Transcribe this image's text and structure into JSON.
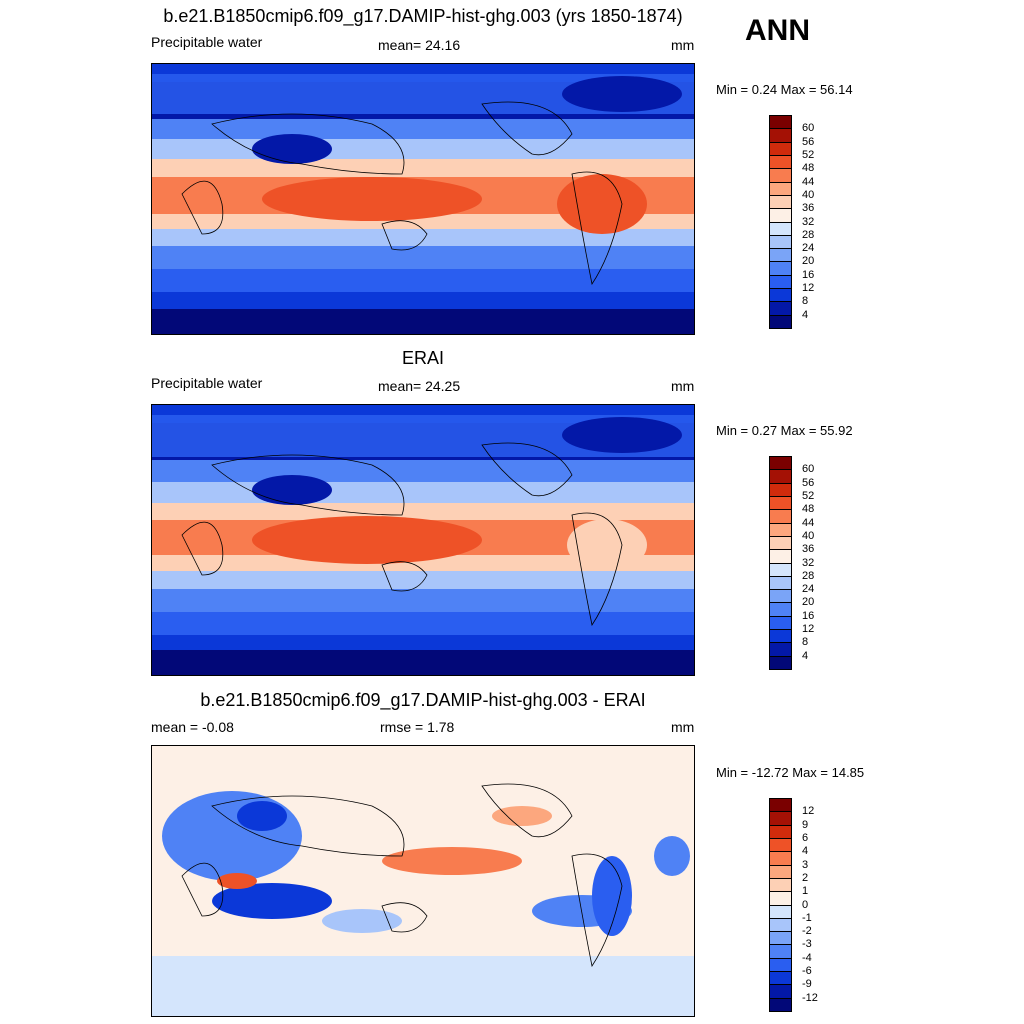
{
  "season": "ANN",
  "panels": [
    {
      "title": "b.e21.B1850cmip6.f09_g17.DAMIP-hist-ghg.003 (yrs 1850-1874)",
      "left_label": "Precipitable water",
      "center_label": "mean=  24.16",
      "units": "mm",
      "minmax": "Min =   0.24 Max =  56.14",
      "colorbar": {
        "labels": [
          "4",
          "8",
          "12",
          "16",
          "20",
          "24",
          "28",
          "32",
          "36",
          "40",
          "44",
          "48",
          "52",
          "56",
          "60"
        ],
        "colors": [
          "#020878",
          "#0318a8",
          "#0b38d8",
          "#2a5ef0",
          "#4f82f5",
          "#7aa4f7",
          "#a8c5fa",
          "#d4e5fc",
          "#fdf0e6",
          "#fdd0b5",
          "#fca77e",
          "#f87c4f",
          "#ee5227",
          "#d02b0c",
          "#a41105",
          "#7a0000"
        ]
      }
    },
    {
      "title": "ERAI",
      "left_label": "Precipitable water",
      "center_label": "mean=  24.25",
      "units": "mm",
      "minmax": "Min =   0.27 Max =  55.92",
      "colorbar": {
        "labels": [
          "4",
          "8",
          "12",
          "16",
          "20",
          "24",
          "28",
          "32",
          "36",
          "40",
          "44",
          "48",
          "52",
          "56",
          "60"
        ],
        "colors": [
          "#020878",
          "#0318a8",
          "#0b38d8",
          "#2a5ef0",
          "#4f82f5",
          "#7aa4f7",
          "#a8c5fa",
          "#d4e5fc",
          "#fdf0e6",
          "#fdd0b5",
          "#fca77e",
          "#f87c4f",
          "#ee5227",
          "#d02b0c",
          "#a41105",
          "#7a0000"
        ]
      }
    },
    {
      "title": "b.e21.B1850cmip6.f09_g17.DAMIP-hist-ghg.003 - ERAI",
      "left_label": "mean =  -0.08",
      "center_label": "rmse =   1.78",
      "units": "mm",
      "minmax": "Min = -12.72 Max =  14.85",
      "colorbar": {
        "labels": [
          "-12",
          "-9",
          "-6",
          "-4",
          "-3",
          "-2",
          "-1",
          "0",
          "1",
          "2",
          "3",
          "4",
          "6",
          "9",
          "12"
        ],
        "colors": [
          "#020878",
          "#0318a8",
          "#0b38d8",
          "#2a5ef0",
          "#4f82f5",
          "#7aa4f7",
          "#a8c5fa",
          "#d4e5fc",
          "#fdf0e6",
          "#fdd0b5",
          "#fca77e",
          "#f87c4f",
          "#ee5227",
          "#d02b0c",
          "#a41105",
          "#7a0000"
        ]
      }
    }
  ]
}
